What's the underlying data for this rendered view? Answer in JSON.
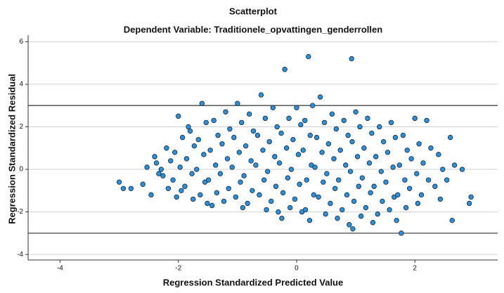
{
  "chart_data": {
    "type": "scatter",
    "title": "Scatterplot",
    "subtitle": "Dependent Variable: Traditionele_opvattingen_genderrollen",
    "x_label": "Regression Standardized Predicted Value",
    "y_label": "Regression Standardized Residual",
    "color": "#2b8fd9",
    "edge_color": "#1a2a3a",
    "grid": true,
    "reference_lines": [
      3,
      -3
    ],
    "xlim": [
      -4.54,
      3.4
    ],
    "ylim": [
      -4.26,
      6.31
    ],
    "xticks": [
      -4,
      -2,
      0,
      2
    ],
    "yticks": [
      -4,
      -2,
      0,
      2,
      4,
      6
    ],
    "x": [
      -3.0,
      -2.93,
      -2.8,
      -2.6,
      -2.53,
      -2.4,
      -2.33,
      -2.46,
      -2.37,
      -2.2,
      -2.13,
      -2.26,
      -2.17,
      -2.29,
      -2.0,
      -1.93,
      -2.06,
      -1.97,
      -2.09,
      -1.95,
      -2.03,
      -1.8,
      -1.73,
      -1.86,
      -1.77,
      -1.89,
      -1.75,
      -1.83,
      -1.6,
      -1.53,
      -1.66,
      -1.57,
      -1.69,
      -1.55,
      -1.63,
      -1.51,
      -1.4,
      -1.33,
      -1.46,
      -1.37,
      -1.49,
      -1.35,
      -1.43,
      -1.2,
      -1.13,
      -1.26,
      -1.17,
      -1.29,
      -1.15,
      -1.23,
      -1.0,
      -0.93,
      -1.06,
      -0.97,
      -1.09,
      -0.95,
      -1.03,
      -0.91,
      -0.8,
      -0.73,
      -0.86,
      -0.77,
      -0.89,
      -0.75,
      -0.83,
      -0.6,
      -0.53,
      -0.66,
      -0.57,
      -0.69,
      -0.55,
      -0.63,
      -0.51,
      -0.4,
      -0.33,
      -0.46,
      -0.37,
      -0.49,
      -0.35,
      -0.43,
      -0.31,
      -0.2,
      -0.13,
      -0.26,
      -0.17,
      -0.29,
      -0.15,
      -0.23,
      -0.11,
      -0.25,
      0.0,
      0.07,
      -0.06,
      0.03,
      -0.09,
      0.05,
      -0.03,
      0.09,
      0.2,
      0.27,
      0.14,
      0.23,
      0.11,
      0.25,
      0.17,
      0.29,
      0.15,
      0.22,
      0.4,
      0.47,
      0.34,
      0.43,
      0.31,
      0.45,
      0.37,
      0.49,
      0.6,
      0.67,
      0.54,
      0.63,
      0.51,
      0.65,
      0.57,
      0.69,
      0.8,
      0.87,
      0.74,
      0.83,
      0.71,
      0.85,
      0.77,
      0.89,
      0.93,
      1.0,
      1.07,
      0.94,
      1.03,
      0.91,
      1.05,
      0.97,
      1.09,
      0.95,
      1.2,
      1.27,
      1.14,
      1.23,
      1.11,
      1.25,
      1.17,
      1.29,
      1.4,
      1.47,
      1.34,
      1.43,
      1.31,
      1.45,
      1.37,
      1.6,
      1.67,
      1.54,
      1.63,
      1.51,
      1.65,
      1.57,
      1.69,
      1.8,
      1.87,
      1.74,
      1.83,
      1.71,
      1.85,
      1.77,
      2.0,
      2.07,
      1.94,
      2.03,
      1.91,
      2.05,
      2.2,
      2.27,
      2.14,
      2.23,
      2.11,
      2.4,
      2.47,
      2.34,
      2.43,
      2.6,
      2.67,
      2.54,
      2.63,
      2.8,
      2.95,
      2.92
    ],
    "values": [
      -0.6,
      -0.9,
      -0.9,
      -0.7,
      0.1,
      0.6,
      -0.2,
      -1.2,
      0.3,
      1.0,
      0.4,
      -0.3,
      -0.9,
      0.0,
      2.5,
      1.5,
      0.8,
      0.1,
      -0.5,
      -1.0,
      -1.3,
      1.8,
      1.1,
      0.5,
      -0.2,
      -0.8,
      -1.4,
      2.0,
      3.1,
      2.2,
      1.4,
      0.7,
      0.0,
      -0.6,
      -1.2,
      -1.6,
      2.3,
      1.6,
      0.9,
      0.2,
      -0.5,
      -1.1,
      -1.7,
      2.7,
      1.9,
      1.2,
      0.5,
      -0.2,
      -0.9,
      -1.5,
      3.1,
      2.2,
      1.5,
      0.8,
      0.1,
      -0.6,
      -1.3,
      -1.8,
      2.6,
      1.8,
      1.1,
      0.4,
      -0.3,
      -1.0,
      -1.6,
      3.5,
      2.4,
      1.6,
      0.9,
      0.2,
      -0.5,
      -1.2,
      -1.9,
      2.9,
      2.0,
      1.3,
      0.6,
      -0.1,
      -0.8,
      -1.5,
      -2.0,
      4.7,
      2.4,
      1.7,
      1.0,
      0.3,
      -0.4,
      -1.1,
      -1.8,
      -2.3,
      2.9,
      2.1,
      1.4,
      0.7,
      0.0,
      -0.7,
      -1.4,
      -2.0,
      5.3,
      3.0,
      2.3,
      1.6,
      0.9,
      0.2,
      -0.5,
      -1.2,
      -1.9,
      -2.4,
      3.4,
      2.2,
      1.5,
      0.8,
      0.1,
      -0.6,
      -1.3,
      -2.1,
      2.6,
      1.9,
      1.2,
      0.5,
      -0.2,
      -0.9,
      -1.6,
      -2.3,
      2.3,
      1.6,
      0.9,
      0.2,
      -0.5,
      -1.2,
      -1.9,
      -2.6,
      5.2,
      2.7,
      2.0,
      1.3,
      0.6,
      -0.1,
      -0.8,
      -1.5,
      -2.2,
      -2.8,
      2.4,
      1.7,
      1.0,
      0.3,
      -0.4,
      -1.1,
      -1.8,
      -2.5,
      2.0,
      1.3,
      0.6,
      -0.1,
      -0.8,
      -1.5,
      -2.1,
      2.2,
      1.5,
      0.8,
      0.1,
      -0.6,
      -1.3,
      -1.9,
      -2.4,
      1.6,
      0.9,
      0.2,
      -0.5,
      -1.2,
      -1.8,
      -3.0,
      2.4,
      1.2,
      0.5,
      -0.2,
      -0.9,
      -1.6,
      2.3,
      1.0,
      0.3,
      -0.5,
      -1.2,
      0.7,
      0.0,
      -0.8,
      -1.4,
      1.5,
      0.2,
      -0.5,
      -2.4,
      0.0,
      -1.3,
      -1.6
    ]
  }
}
